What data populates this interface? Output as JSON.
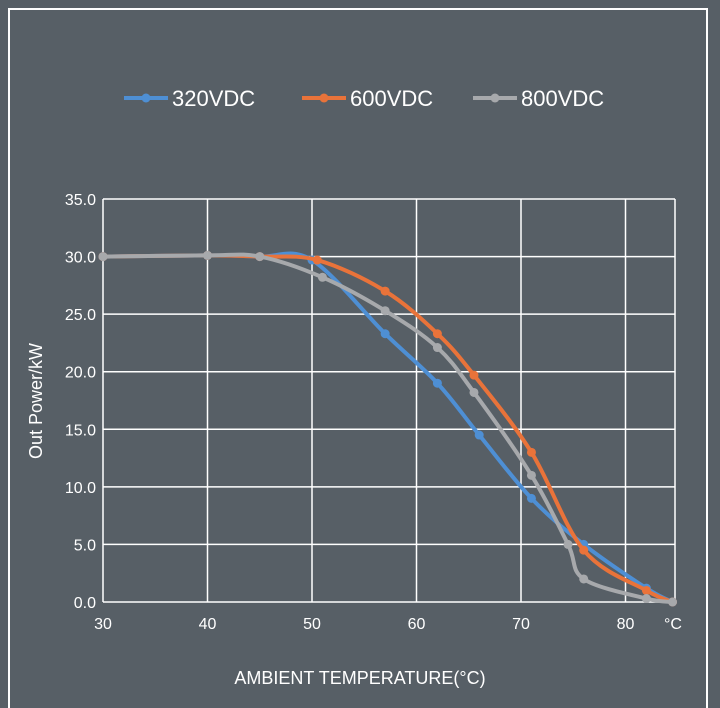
{
  "chart_data": {
    "type": "line",
    "xlabel": "AMBIENT TEMPERATURE(°C)",
    "ylabel": "Out Power/kW",
    "x_unit": "°C",
    "xlim": [
      30,
      84.5
    ],
    "ylim": [
      0,
      35
    ],
    "x_ticks": [
      "30",
      "40",
      "50",
      "60",
      "70",
      "80"
    ],
    "y_ticks": [
      "0.0",
      "5.0",
      "10.0",
      "15.0",
      "20.0",
      "25.0",
      "30.0",
      "35.0"
    ],
    "grid": true,
    "legend_position": "top",
    "series": [
      {
        "name": "320VDC",
        "color": "#4e8fd4",
        "x": [
          30,
          40,
          45,
          50,
          57,
          62,
          66,
          71,
          76,
          82,
          84.5
        ],
        "y": [
          30,
          30.1,
          30,
          29.7,
          23.3,
          19,
          14.5,
          9,
          5,
          1.2,
          0
        ]
      },
      {
        "name": "600VDC",
        "color": "#e9733a",
        "x": [
          30,
          40,
          45,
          50.5,
          57,
          62,
          65.5,
          71,
          76,
          82,
          84.5
        ],
        "y": [
          30,
          30.1,
          30,
          29.7,
          27,
          23.3,
          19.7,
          13,
          4.5,
          1,
          0
        ]
      },
      {
        "name": "800VDC",
        "color": "#a7a9ac",
        "x": [
          30,
          40,
          45,
          51,
          57,
          62,
          65.5,
          71,
          74.5,
          76,
          82,
          84.5
        ],
        "y": [
          30,
          30.1,
          30,
          28.2,
          25.3,
          22.1,
          18.2,
          11,
          5,
          2,
          0.3,
          0
        ]
      }
    ]
  }
}
